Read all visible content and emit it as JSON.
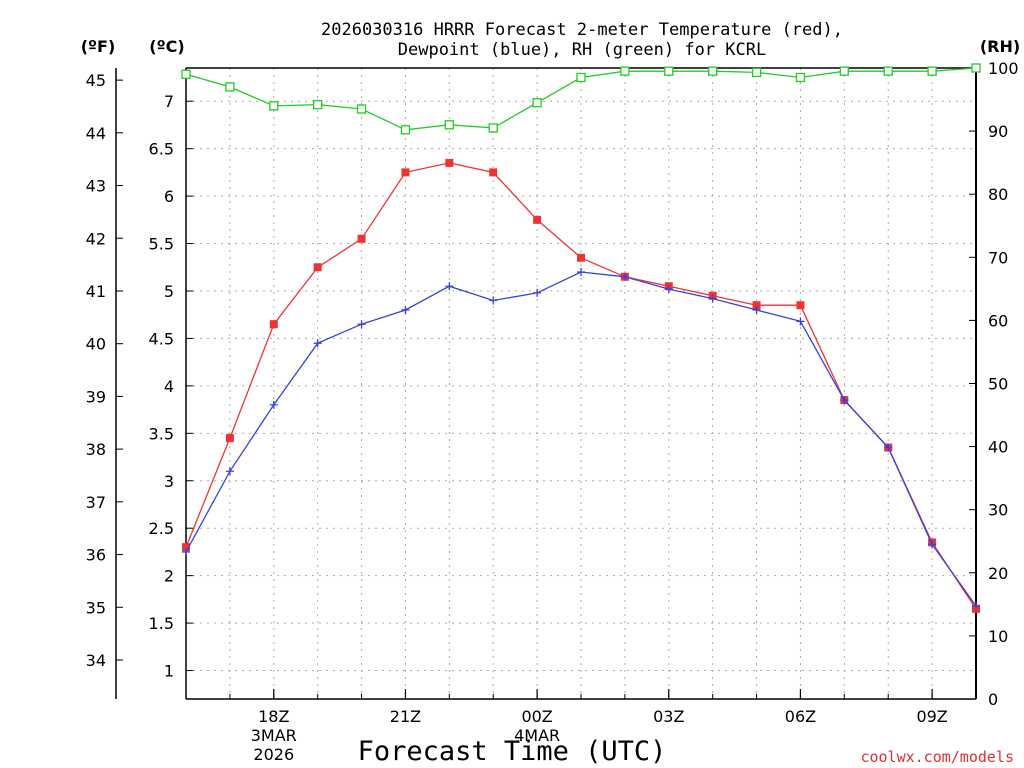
{
  "chart_data": {
    "type": "line",
    "title_line1": "2026030316 HRRR Forecast 2-meter Temperature (red),",
    "title_line2": "Dewpoint (blue), RH (green) for KCRL",
    "xlabel": "Forecast Time (UTC)",
    "credit": "coolwx.com/models",
    "left_axis_label_f": "(ºF)",
    "left_axis_label_c": "(ºC)",
    "right_axis_label": "(RH)",
    "x_hours": [
      16,
      17,
      18,
      19,
      20,
      21,
      22,
      23,
      24,
      25,
      26,
      27,
      28,
      29,
      30,
      31,
      32,
      33,
      34
    ],
    "x_range": [
      16,
      34
    ],
    "x_ticks": [
      {
        "hour": 18,
        "label": "18Z",
        "date": "3MAR",
        "year": "2026"
      },
      {
        "hour": 21,
        "label": "21Z",
        "date": "",
        "year": ""
      },
      {
        "hour": 24,
        "label": "00Z",
        "date": "4MAR",
        "year": ""
      },
      {
        "hour": 27,
        "label": "03Z",
        "date": "",
        "year": ""
      },
      {
        "hour": 30,
        "label": "06Z",
        "date": "",
        "year": ""
      },
      {
        "hour": 33,
        "label": "09Z",
        "date": "",
        "year": ""
      }
    ],
    "celsius_range": [
      0.7,
      7.35
    ],
    "celsius_ticks": [
      "1",
      "1.5",
      "2",
      "2.5",
      "3",
      "3.5",
      "4",
      "4.5",
      "5",
      "5.5",
      "6",
      "6.5",
      "7"
    ],
    "fahrenheit_ticks": [
      "34",
      "35",
      "36",
      "37",
      "38",
      "39",
      "40",
      "41",
      "42",
      "43",
      "44",
      "45"
    ],
    "rh_range": [
      0,
      100
    ],
    "rh_ticks": [
      "0",
      "10",
      "20",
      "30",
      "40",
      "50",
      "60",
      "70",
      "80",
      "90",
      "100"
    ],
    "series": [
      {
        "name": "Temperature",
        "unit": "C",
        "color": "#ee3333",
        "marker": "filled-square",
        "values": [
          2.3,
          3.45,
          4.65,
          5.25,
          5.55,
          6.25,
          6.35,
          6.25,
          5.75,
          5.35,
          5.15,
          5.05,
          4.95,
          4.85,
          4.85,
          3.85,
          3.35,
          2.35,
          1.65
        ]
      },
      {
        "name": "Dewpoint",
        "unit": "C",
        "color": "#3344dd",
        "marker": "plus",
        "values": [
          2.25,
          3.1,
          3.8,
          4.45,
          4.65,
          4.8,
          5.05,
          4.9,
          4.98,
          5.2,
          5.15,
          5.02,
          4.92,
          4.8,
          4.68,
          3.85,
          3.35,
          2.33,
          1.68
        ]
      },
      {
        "name": "RH",
        "unit": "%",
        "color": "#22cc22",
        "marker": "open-square",
        "values": [
          99,
          97,
          94,
          94.2,
          93.5,
          90.2,
          91,
          90.5,
          94.5,
          98.5,
          99.5,
          99.5,
          99.5,
          99.3,
          98.5,
          99.5,
          99.5,
          99.5,
          100
        ]
      }
    ]
  }
}
